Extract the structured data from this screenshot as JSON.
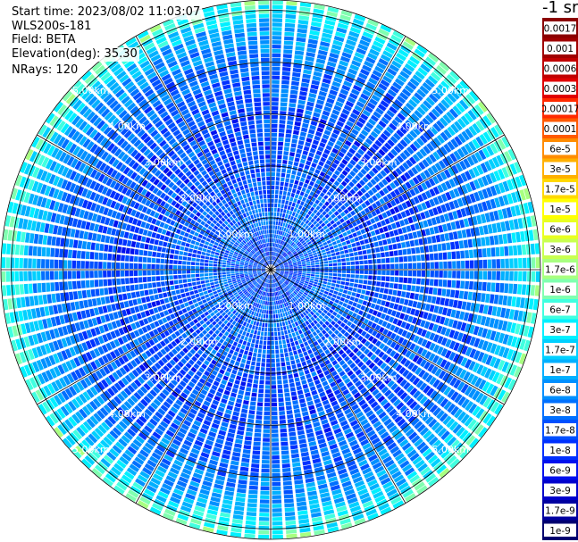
{
  "info": {
    "start_time": "Start time: 2023/08/02 11:03:07",
    "instrument": "WLS200s-181",
    "field": "Field: BETA",
    "elevation": "Elevation(deg): 35.30",
    "nrays": "NRays: 120"
  },
  "colorbar": {
    "unit_label": "-1 sr",
    "labels": [
      "0.0017",
      "0.001",
      "0.0006",
      "0.0003",
      "0.00017",
      "0.0001",
      "6e-5",
      "3e-5",
      "1.7e-5",
      "1e-5",
      "6e-6",
      "3e-6",
      "1.7e-6",
      "1e-6",
      "6e-7",
      "3e-7",
      "1.7e-7",
      "1e-7",
      "6e-8",
      "3e-8",
      "1.7e-8",
      "1e-8",
      "6e-9",
      "3e-9",
      "1.7e-9",
      "1e-9"
    ],
    "colors": [
      "#8b0000",
      "#a00000",
      "#c00000",
      "#e00000",
      "#ff2a00",
      "#ff5a00",
      "#ff8c00",
      "#ffb000",
      "#ffd800",
      "#ffff00",
      "#e8ff20",
      "#c8ff50",
      "#a8ff80",
      "#80ffb0",
      "#40ffe0",
      "#00f0ff",
      "#00d0ff",
      "#00b0ff",
      "#0090ff",
      "#0070ff",
      "#0050ff",
      "#0030ff",
      "#0010ee",
      "#0000cc",
      "#0000a0",
      "#000070"
    ]
  },
  "chart_data": {
    "type": "heatmap",
    "projection": "polar (PPI scan)",
    "field": "BETA",
    "n_rays": 120,
    "range_ring_labels": [
      "1.00km",
      "2.00km",
      "3.00km",
      "4.00km",
      "5.00km"
    ],
    "range_rings_km": [
      1,
      2,
      3,
      4,
      5
    ],
    "max_range_km": 5.2,
    "azimuth_spokes": 12,
    "scale": "log",
    "value_range": [
      1e-09,
      0.0017
    ],
    "typical_value_by_range_km": [
      {
        "range_km": 0.5,
        "value": 1.7e-08
      },
      {
        "range_km": 1.0,
        "value": 3e-08
      },
      {
        "range_km": 2.0,
        "value": 1.7e-08
      },
      {
        "range_km": 3.0,
        "value": 1.7e-08
      },
      {
        "range_km": 4.0,
        "value": 3e-08
      },
      {
        "range_km": 4.7,
        "value": 1e-07
      },
      {
        "range_km": 5.1,
        "value": 6e-07
      }
    ]
  }
}
